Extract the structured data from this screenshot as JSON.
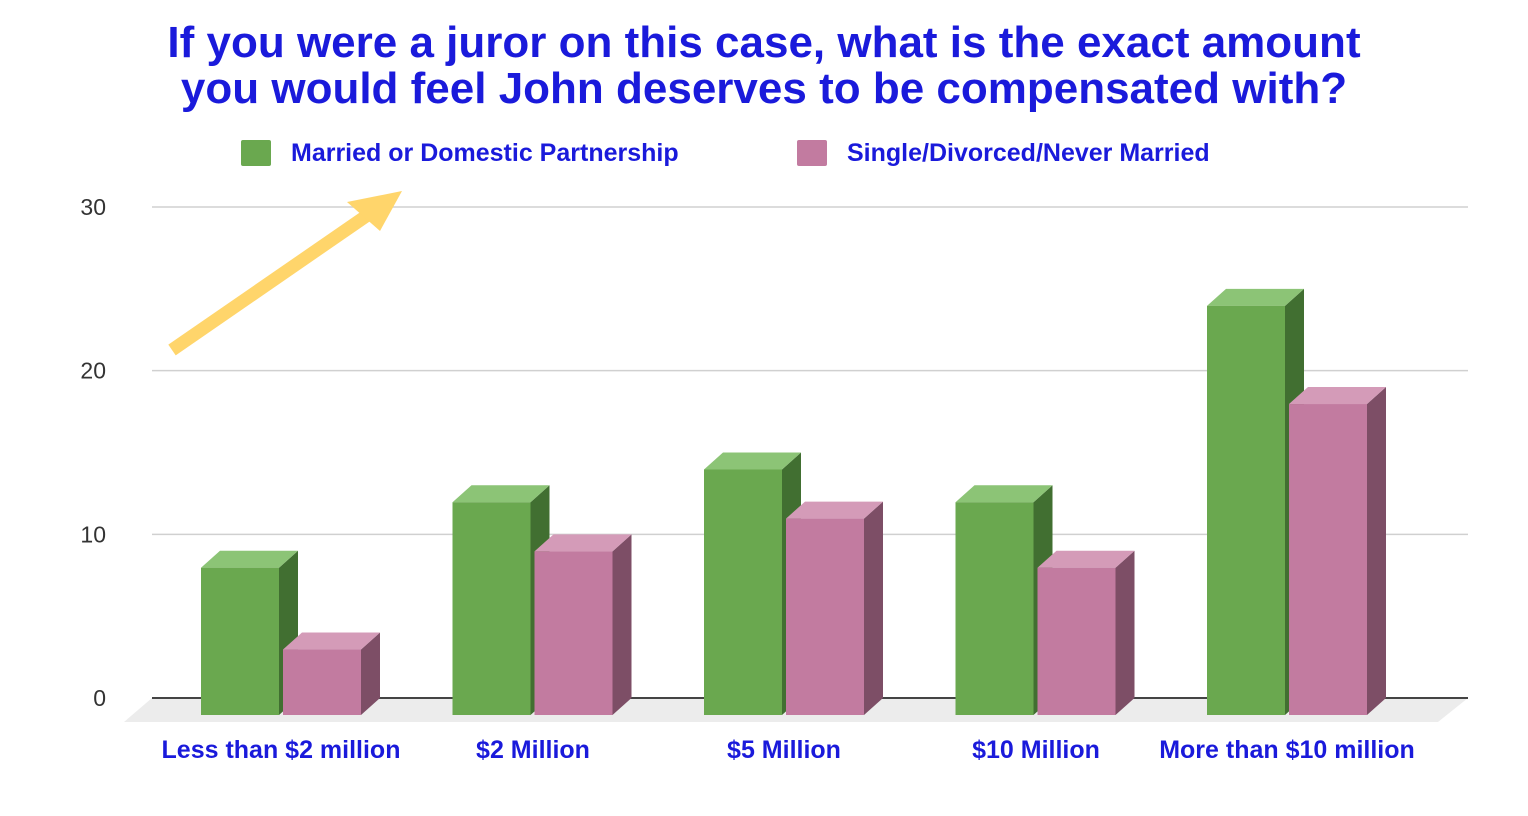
{
  "chart_data": {
    "type": "bar",
    "title_lines": [
      "If you were a juror on this case, what is the exact amount",
      "you would feel John deserves to be compensated with?"
    ],
    "xlabel": "",
    "ylabel": "",
    "categories": [
      "Less than $2 million",
      "$2 Million",
      "$5 Million",
      "$10 Million",
      "More than $10 million"
    ],
    "series": [
      {
        "name": "Married or Domestic Partnership",
        "color": "#6aa84f",
        "top_color": "#8cc476",
        "side_color": "#416f31",
        "values": [
          9,
          13,
          15,
          13,
          25
        ]
      },
      {
        "name": "Single/Divorced/Never Married",
        "color": "#c27ba0",
        "top_color": "#d49bb8",
        "side_color": "#7d4e66",
        "values": [
          4,
          10,
          12,
          9,
          19
        ]
      }
    ],
    "ylim": [
      0,
      30
    ],
    "yticks": [
      "0",
      "10",
      "20",
      "30"
    ],
    "ytick_values": [
      0,
      10,
      20,
      30
    ],
    "grid": true,
    "legend": "top-center",
    "style": "3d-column",
    "text_color": "#1a1adb",
    "annotation": {
      "type": "arrow",
      "color": "#ffd56b",
      "target": "legend"
    }
  }
}
